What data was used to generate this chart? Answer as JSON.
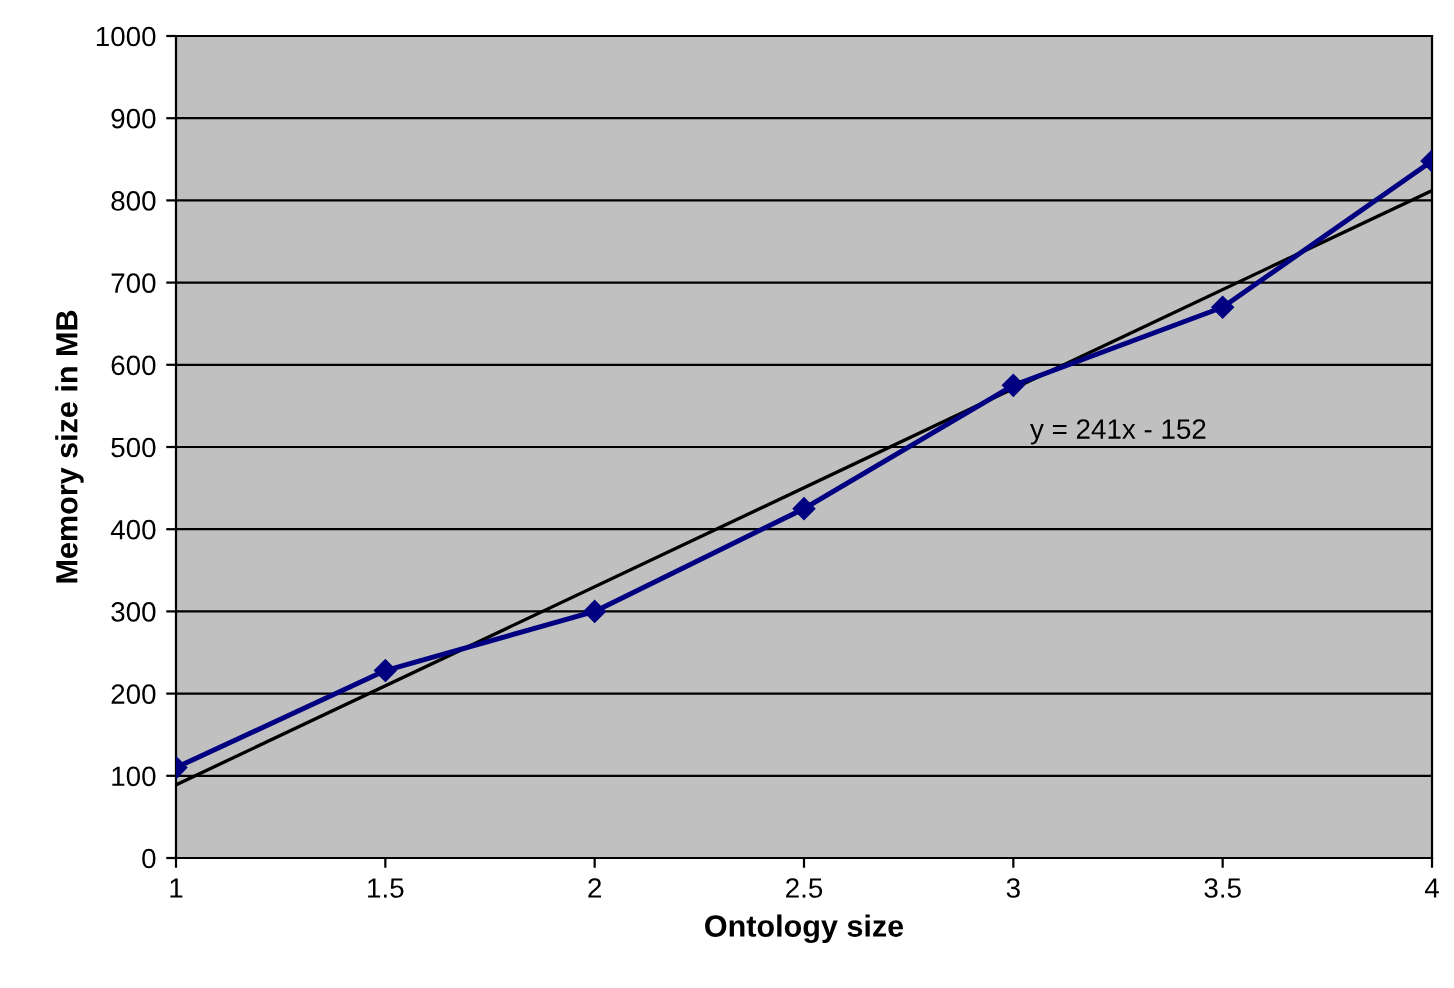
{
  "chart_data": {
    "type": "line",
    "xlabel": "Ontology size",
    "ylabel": "Memory size in MB",
    "x": [
      1,
      1.5,
      2,
      2.5,
      3,
      3.5,
      4
    ],
    "series": [
      {
        "color": "#000080",
        "values": [
          110,
          228,
          300,
          425,
          575,
          670,
          848
        ],
        "marker": "diamond"
      },
      {
        "type": "line",
        "color": "#000000",
        "x": [
          1,
          4
        ],
        "values": [
          89,
          812
        ],
        "marker": "none"
      }
    ],
    "xlim": [
      1,
      4
    ],
    "xticks": [
      1,
      1.5,
      2,
      2.5,
      3,
      3.5,
      4
    ],
    "ylim": [
      0,
      1000
    ],
    "yticks": [
      0,
      100,
      200,
      300,
      400,
      500,
      600,
      700,
      800,
      900,
      1000
    ],
    "grid": "y",
    "line_style": "solid",
    "annotations": [
      {
        "text": "y = 241x - 152",
        "x": 3,
        "y": 571
      }
    ]
  }
}
